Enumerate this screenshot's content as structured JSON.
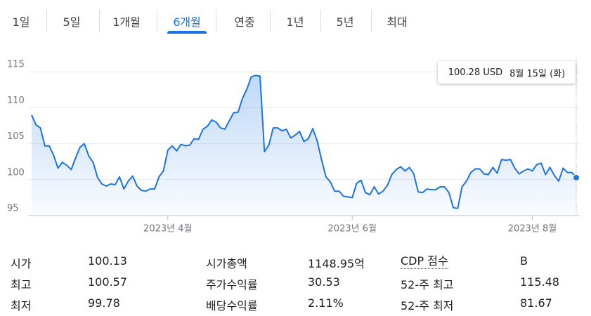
{
  "tabs": [
    "1일",
    "5일",
    "1개월",
    "6개월",
    "연중",
    "1년",
    "5년",
    "최대"
  ],
  "selected_tab": "6개월",
  "tooltip": {
    "price": "100.28 USD",
    "date": "8월 15일 (화)"
  },
  "chart_data": {
    "type": "line",
    "color": "#1a73e8",
    "values": [
      109,
      107.6,
      107.2,
      104.7,
      104.7,
      103.4,
      101.6,
      102.4,
      102.0,
      101.4,
      103.0,
      104.5,
      105.0,
      103.3,
      102.4,
      100.3,
      99.4,
      99.1,
      99.4,
      99.3,
      100.4,
      98.7,
      99.8,
      100.5,
      99.1,
      98.5,
      98.4,
      98.7,
      98.7,
      100.4,
      101.2,
      104.1,
      104.7,
      104.0,
      104.9,
      104.7,
      104.8,
      105.7,
      105.6,
      107.0,
      107.4,
      108.3,
      108.0,
      107.2,
      107.0,
      108.2,
      109.3,
      109.4,
      111.3,
      112.6,
      114.3,
      114.5,
      114.4,
      103.9,
      104.8,
      107.2,
      107.2,
      106.8,
      107.0,
      105.8,
      106.2,
      106.7,
      105.3,
      105.7,
      107.1,
      105.4,
      102.8,
      100.4,
      99.7,
      98.4,
      98.4,
      97.7,
      97.6,
      97.5,
      99.5,
      99.9,
      98.2,
      97.9,
      99.0,
      98.0,
      98.4,
      99.2,
      100.7,
      101.4,
      101.8,
      101.2,
      101.7,
      100.8,
      98.3,
      98.2,
      98.7,
      98.6,
      98.6,
      99.0,
      99.0,
      98.2,
      96.1,
      96.0,
      99.0,
      99.8,
      101.0,
      101.5,
      101.5,
      100.8,
      100.7,
      101.7,
      100.9,
      102.8,
      102.7,
      102.8,
      101.6,
      100.8,
      101.2,
      101.5,
      101.2,
      102.1,
      102.3,
      100.7,
      101.7,
      100.6,
      99.8,
      101.6,
      101.0,
      101.0,
      100.28
    ],
    "xlim": [
      0,
      124
    ],
    "xticks": [
      {
        "value": 31,
        "label": "2023년 4월"
      },
      {
        "value": 73,
        "label": "2023년 6월"
      },
      {
        "value": 114,
        "label": "2023년 8월"
      }
    ],
    "ylim": [
      95,
      116
    ],
    "yticks": [
      95,
      100,
      105,
      110,
      115
    ],
    "grid": true
  },
  "stats": [
    [
      "시가",
      "100.13",
      "시가총액",
      "1148.95억",
      "CDP 점수",
      "B"
    ],
    [
      "최고",
      "100.57",
      "주가수익률",
      "30.53",
      "52-주 최고",
      "115.48"
    ],
    [
      "최저",
      "99.78",
      "배당수익률",
      "2.11%",
      "52-주 최저",
      "81.67"
    ]
  ]
}
